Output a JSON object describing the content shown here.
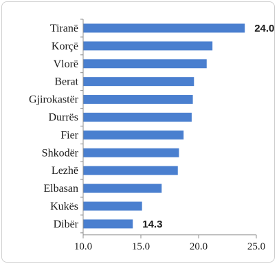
{
  "chart_data": {
    "type": "bar",
    "orientation": "horizontal",
    "categories": [
      "Tiranë",
      "Korçë",
      "Vlorë",
      "Berat",
      "Gjirokastër",
      "Durrës",
      "Fier",
      "Shkodër",
      "Lezhë",
      "Elbasan",
      "Kukës",
      "Dibër"
    ],
    "values": [
      24.0,
      21.2,
      20.7,
      19.6,
      19.5,
      19.4,
      18.7,
      18.3,
      18.2,
      16.8,
      15.1,
      14.3
    ],
    "data_labels": [
      {
        "category": "Tiranë",
        "text": "24.0"
      },
      {
        "category": "Dibër",
        "text": "14.3"
      }
    ],
    "xlim": [
      10.0,
      25.0
    ],
    "xticks": [
      "10.0",
      "15.0",
      "20.0",
      "25.0"
    ],
    "grid": false,
    "legend": "none",
    "bar_color": "#4a7fcf"
  }
}
